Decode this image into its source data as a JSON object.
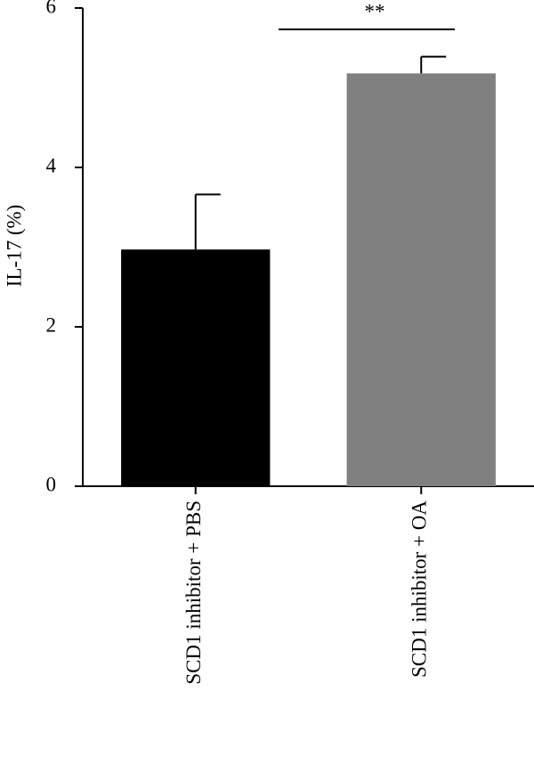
{
  "chart_data": {
    "type": "bar",
    "ylabel": "IL-17 (%)",
    "categories": [
      "SCD1 inhibitor + PBS",
      "SCD1 inhibitor + OA"
    ],
    "values": [
      2.97,
      5.18
    ],
    "errors": [
      0.69,
      0.21
    ],
    "colors": [
      "#000000",
      "#808080"
    ],
    "ylim": [
      0,
      6
    ],
    "yticks": [
      0,
      2,
      4,
      6
    ],
    "annotations": [
      "**"
    ]
  }
}
